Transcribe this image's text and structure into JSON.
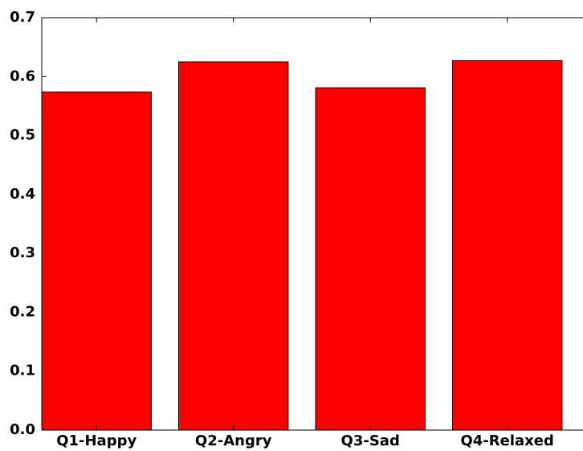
{
  "chart_data": {
    "type": "bar",
    "categories": [
      "Q1-Happy",
      "Q2-Angry",
      "Q3-Sad",
      "Q4-Relaxed"
    ],
    "values": [
      0.574,
      0.625,
      0.581,
      0.627
    ],
    "color": "#ff0000",
    "ylim": [
      0,
      0.7
    ],
    "yticks": [
      {
        "value": 0,
        "label": "0.0"
      },
      0.1,
      0.2,
      0.3,
      0.4,
      0.5,
      0.6,
      0.7
    ],
    "grid": false
  }
}
